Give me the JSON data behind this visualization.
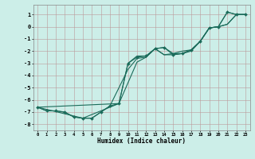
{
  "title": "",
  "xlabel": "Humidex (Indice chaleur)",
  "ylabel": "",
  "bg_color": "#cceee8",
  "grid_color": "#bb9999",
  "line_color": "#1a6b5a",
  "marker_color": "#1a6b5a",
  "x_min": -0.5,
  "x_max": 23.5,
  "y_min": -8.5,
  "y_max": 1.8,
  "yticks": [
    1,
    0,
    -1,
    -2,
    -3,
    -4,
    -5,
    -6,
    -7,
    -8
  ],
  "xticks": [
    0,
    1,
    2,
    3,
    4,
    5,
    6,
    7,
    8,
    9,
    10,
    11,
    12,
    13,
    14,
    15,
    16,
    17,
    18,
    19,
    20,
    21,
    22,
    23
  ],
  "series": [
    {
      "x": [
        0,
        1,
        2,
        3,
        4,
        5,
        6,
        7,
        8,
        9,
        10,
        11,
        12,
        13,
        14,
        15,
        16,
        17,
        18,
        19,
        20,
        21,
        22,
        23
      ],
      "y": [
        -6.6,
        -6.9,
        -6.9,
        -7.0,
        -7.4,
        -7.5,
        -7.5,
        -7.0,
        -6.5,
        -6.3,
        -3.0,
        -2.5,
        -2.4,
        -1.8,
        -1.7,
        -2.3,
        -2.2,
        -1.9,
        -1.2,
        -0.1,
        0.0,
        1.2,
        1.0,
        1.0
      ],
      "with_markers": true
    },
    {
      "x": [
        0,
        1,
        2,
        3,
        4,
        5,
        6,
        7,
        8,
        9,
        10,
        11,
        12,
        13,
        14,
        15,
        16,
        17,
        18,
        19,
        20,
        21,
        22,
        23
      ],
      "y": [
        -6.6,
        -6.9,
        -6.9,
        -7.0,
        -7.4,
        -7.5,
        -7.5,
        -7.0,
        -6.5,
        -5.0,
        -3.5,
        -2.6,
        -2.5,
        -1.8,
        -2.3,
        -2.3,
        -2.2,
        -2.0,
        -1.2,
        -0.1,
        0.0,
        0.2,
        1.0,
        1.0
      ],
      "with_markers": false
    },
    {
      "x": [
        0,
        5,
        9,
        10,
        11,
        12,
        13,
        14,
        15,
        16,
        17,
        18,
        19,
        20,
        21,
        22,
        23
      ],
      "y": [
        -6.6,
        -7.5,
        -6.3,
        -3.0,
        -2.4,
        -2.4,
        -1.8,
        -1.7,
        -2.2,
        -2.2,
        -1.9,
        -1.2,
        -0.1,
        0.0,
        1.2,
        1.0,
        1.0
      ],
      "with_markers": false
    },
    {
      "x": [
        0,
        9,
        10,
        11,
        12,
        13,
        14,
        15,
        16,
        17,
        18,
        19,
        20,
        21,
        22,
        23
      ],
      "y": [
        -6.6,
        -6.3,
        -4.6,
        -2.9,
        -2.5,
        -1.8,
        -2.3,
        -2.2,
        -2.0,
        -1.9,
        -1.2,
        -0.1,
        0.0,
        0.2,
        1.0,
        1.0
      ],
      "with_markers": false
    }
  ]
}
